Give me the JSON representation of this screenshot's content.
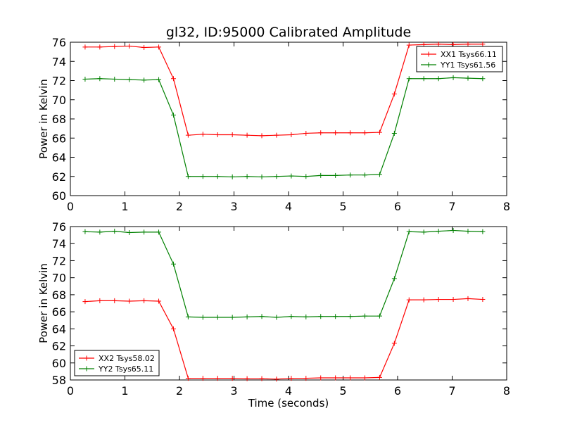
{
  "figure": {
    "title": "gl32, ID:95000 Calibrated Amplitude"
  },
  "colors": {
    "red": "#ff0000",
    "green": "#008000"
  },
  "chart_data": [
    {
      "type": "line",
      "title": "gl32, ID:95000 Calibrated Amplitude",
      "xlabel": "",
      "ylabel": "Power in Kelvin",
      "xlim": [
        0,
        8
      ],
      "ylim": [
        60,
        76
      ],
      "xticks": [
        0,
        1,
        2,
        3,
        4,
        5,
        6,
        7,
        8
      ],
      "yticks": [
        60,
        62,
        64,
        66,
        68,
        70,
        72,
        74,
        76
      ],
      "legend_position": "upper right",
      "x": [
        0.27,
        0.54,
        0.81,
        1.08,
        1.35,
        1.62,
        1.89,
        2.16,
        2.43,
        2.7,
        2.97,
        3.24,
        3.51,
        3.78,
        4.05,
        4.32,
        4.59,
        4.86,
        5.13,
        5.4,
        5.67,
        5.94,
        6.21,
        6.48,
        6.75,
        7.02,
        7.29,
        7.56
      ],
      "series": [
        {
          "name": "XX1 Tsys66.11",
          "color": "#ff0000",
          "values": [
            75.5,
            75.5,
            75.55,
            75.6,
            75.45,
            75.5,
            72.2,
            66.3,
            66.4,
            66.35,
            66.35,
            66.3,
            66.25,
            66.3,
            66.35,
            66.5,
            66.55,
            66.55,
            66.55,
            66.55,
            66.6,
            70.6,
            75.7,
            75.75,
            75.8,
            75.75,
            75.8,
            75.8
          ]
        },
        {
          "name": "YY1 Tsys61.56",
          "color": "#008000",
          "values": [
            72.15,
            72.2,
            72.15,
            72.1,
            72.05,
            72.1,
            68.4,
            62.0,
            62.0,
            62.0,
            61.95,
            62.0,
            61.95,
            62.0,
            62.05,
            62.0,
            62.1,
            62.1,
            62.15,
            62.15,
            62.2,
            66.5,
            72.2,
            72.2,
            72.2,
            72.3,
            72.25,
            72.2
          ]
        }
      ]
    },
    {
      "type": "line",
      "title": "",
      "xlabel": "Time (seconds)",
      "ylabel": "Power in Kelvin",
      "xlim": [
        0,
        8
      ],
      "ylim": [
        58,
        76
      ],
      "xticks": [
        0,
        1,
        2,
        3,
        4,
        5,
        6,
        7,
        8
      ],
      "yticks": [
        58,
        60,
        62,
        64,
        66,
        68,
        70,
        72,
        74,
        76
      ],
      "legend_position": "lower left",
      "x": [
        0.27,
        0.54,
        0.81,
        1.08,
        1.35,
        1.62,
        1.89,
        2.16,
        2.43,
        2.7,
        2.97,
        3.24,
        3.51,
        3.78,
        4.05,
        4.32,
        4.59,
        4.86,
        5.13,
        5.4,
        5.67,
        5.94,
        6.21,
        6.48,
        6.75,
        7.02,
        7.29,
        7.56
      ],
      "series": [
        {
          "name": "XX2 Tsys58.02",
          "color": "#ff0000",
          "values": [
            67.2,
            67.3,
            67.3,
            67.25,
            67.3,
            67.25,
            64.0,
            58.2,
            58.2,
            58.2,
            58.2,
            58.15,
            58.15,
            58.1,
            58.2,
            58.2,
            58.25,
            58.25,
            58.25,
            58.25,
            58.3,
            62.3,
            67.4,
            67.4,
            67.45,
            67.45,
            67.55,
            67.45
          ]
        },
        {
          "name": "YY2 Tsys65.11",
          "color": "#008000",
          "values": [
            75.4,
            75.35,
            75.45,
            75.3,
            75.35,
            75.35,
            71.6,
            65.4,
            65.35,
            65.35,
            65.35,
            65.4,
            65.45,
            65.35,
            65.45,
            65.4,
            65.45,
            65.45,
            65.45,
            65.5,
            65.5,
            69.9,
            75.4,
            75.35,
            75.45,
            75.55,
            75.45,
            75.4
          ]
        }
      ]
    }
  ]
}
